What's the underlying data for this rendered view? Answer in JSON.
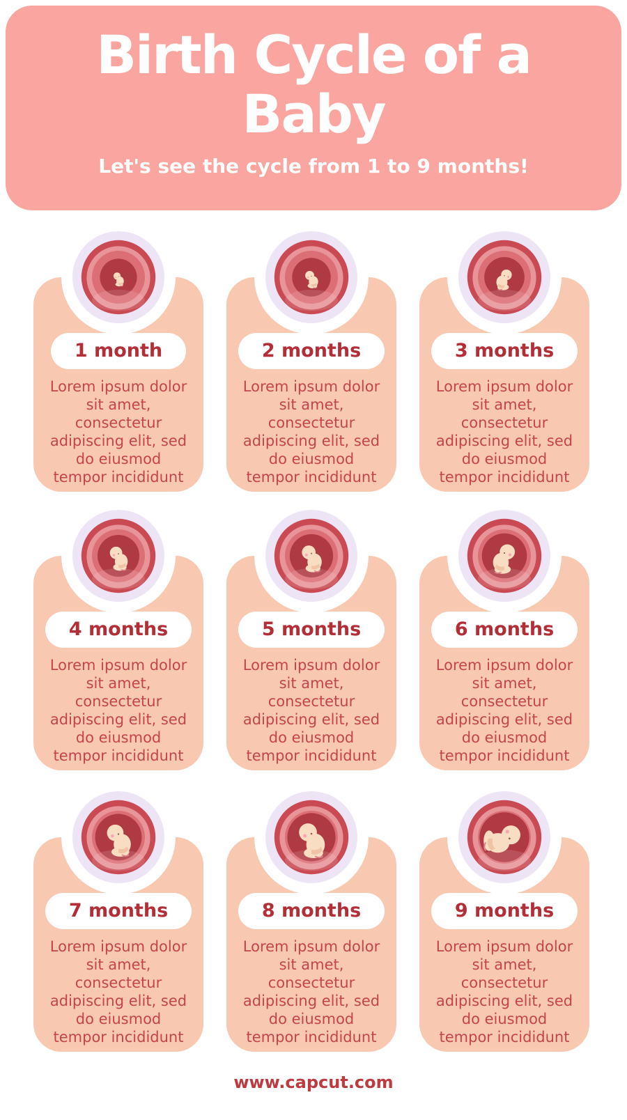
{
  "header": {
    "title": "Birth Cycle of a\nBaby",
    "subtitle": "Let's see the cycle from 1 to 9 months!"
  },
  "cards": [
    {
      "label": "1 month",
      "body": "Lorem ipsum dolor\nsit amet,\nconsectetur\nadipiscing elit, sed\ndo eiusmod\ntempor incididunt"
    },
    {
      "label": "2 months",
      "body": "Lorem ipsum dolor\nsit amet,\nconsectetur\nadipiscing elit, sed\ndo eiusmod\ntempor incididunt"
    },
    {
      "label": "3 months",
      "body": "Lorem ipsum dolor\nsit amet,\nconsectetur\nadipiscing elit, sed\ndo eiusmod\ntempor incididunt"
    },
    {
      "label": "4 months",
      "body": "Lorem ipsum dolor\nsit amet,\nconsectetur\nadipiscing elit, sed\ndo eiusmod\ntempor incididunt"
    },
    {
      "label": "5 months",
      "body": "Lorem ipsum dolor\nsit amet,\nconsectetur\nadipiscing elit, sed\ndo eiusmod\ntempor incididunt"
    },
    {
      "label": "6 months",
      "body": "Lorem ipsum dolor\nsit amet,\nconsectetur\nadipiscing elit, sed\ndo eiusmod\ntempor incididunt"
    },
    {
      "label": "7 months",
      "body": "Lorem ipsum dolor\nsit amet,\nconsectetur\nadipiscing elit, sed\ndo eiusmod\ntempor incididunt"
    },
    {
      "label": "8 months",
      "body": "Lorem ipsum dolor\nsit amet,\nconsectetur\nadipiscing elit, sed\ndo eiusmod\ntempor incididunt"
    },
    {
      "label": "9 months",
      "body": "Lorem ipsum dolor\nsit amet,\nconsectetur\nadipiscing elit, sed\ndo eiusmod\ntempor incididunt"
    }
  ],
  "footer": {
    "url": "www.capcut.com"
  },
  "icons": {
    "card_illustration": "fetus-in-womb-icon"
  },
  "colors": {
    "header_bg": "#FAA5A0",
    "header_text": "#FFFFFF",
    "card_bg": "#F8C8B1",
    "womb_ring": "#EDE4F6",
    "month_label_text": "#B32E37",
    "body_text": "#C4454E",
    "footer_text": "#BE3A41",
    "womb_outer": "#C94A53",
    "womb_mid_light": "#E8959A",
    "womb_mid": "#DC6F76",
    "womb_inner": "#B03A44",
    "fetus_skin": "#F9DDC3"
  }
}
